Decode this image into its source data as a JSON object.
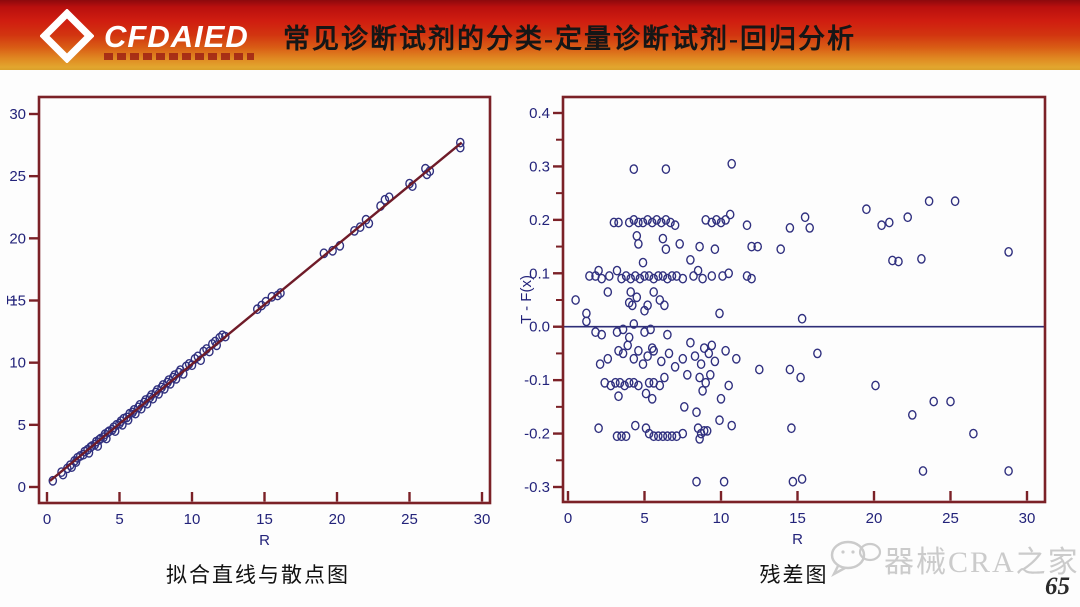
{
  "header": {
    "logo_text": "CFDAIED",
    "title": "常见诊断试剂的分类-定量诊断试剂-回归分析"
  },
  "captions": {
    "left": "拟合直线与散点图",
    "right": "残差图"
  },
  "footer": {
    "watermark_text": "器械CRA之家",
    "page_number": "65"
  },
  "colors": {
    "frame": "#7b2127",
    "tick_label": "#23237a",
    "marker": "#30307f",
    "fit_line": "#6f1b28",
    "zero_line": "#2e2e78",
    "header_red": "#d01d10",
    "header_gold": "#dfa32b",
    "watermark": "#cbcbcb"
  },
  "chart_data": [
    {
      "type": "scatter",
      "title": "拟合直线与散点图",
      "xlabel": "R",
      "ylabel": "T",
      "xlim": [
        0,
        30
      ],
      "ylim": [
        0,
        30
      ],
      "xticks": [
        0,
        5,
        10,
        15,
        20,
        25,
        30
      ],
      "xtick_labels": [
        "0",
        "5",
        "10",
        "15",
        "20",
        "25",
        "30"
      ],
      "yticks": [
        0,
        5,
        10,
        15,
        20,
        25,
        30
      ],
      "ytick_labels": [
        "0",
        "5",
        "10",
        "15",
        "20",
        "25",
        "30"
      ],
      "grid": false,
      "line": {
        "x": [
          0.2,
          28.6
        ],
        "y": [
          0.49,
          27.7
        ]
      },
      "points": [
        [
          0.4,
          0.5
        ],
        [
          1.0,
          1.2
        ],
        [
          1.1,
          1.0
        ],
        [
          1.4,
          1.5
        ],
        [
          1.6,
          1.75
        ],
        [
          1.7,
          1.6
        ],
        [
          1.9,
          2.1
        ],
        [
          2.0,
          2.0
        ],
        [
          2.1,
          2.35
        ],
        [
          2.3,
          2.5
        ],
        [
          2.5,
          2.6
        ],
        [
          2.6,
          2.85
        ],
        [
          2.8,
          3.0
        ],
        [
          2.9,
          2.75
        ],
        [
          3.0,
          3.2
        ],
        [
          3.1,
          3.3
        ],
        [
          3.3,
          3.4
        ],
        [
          3.4,
          3.65
        ],
        [
          3.5,
          3.3
        ],
        [
          3.6,
          3.8
        ],
        [
          3.7,
          3.9
        ],
        [
          3.9,
          4.0
        ],
        [
          4.0,
          4.25
        ],
        [
          4.1,
          3.9
        ],
        [
          4.2,
          4.4
        ],
        [
          4.3,
          4.5
        ],
        [
          4.5,
          4.6
        ],
        [
          4.6,
          4.8
        ],
        [
          4.7,
          4.5
        ],
        [
          4.8,
          5.0
        ],
        [
          5.0,
          5.1
        ],
        [
          5.1,
          5.3
        ],
        [
          5.2,
          5.0
        ],
        [
          5.3,
          5.5
        ],
        [
          5.5,
          5.6
        ],
        [
          5.6,
          5.4
        ],
        [
          5.7,
          5.9
        ],
        [
          5.9,
          6.0
        ],
        [
          6.0,
          6.2
        ],
        [
          6.1,
          5.9
        ],
        [
          6.3,
          6.4
        ],
        [
          6.4,
          6.6
        ],
        [
          6.5,
          6.3
        ],
        [
          6.7,
          6.8
        ],
        [
          6.8,
          7.0
        ],
        [
          6.9,
          6.7
        ],
        [
          7.1,
          7.2
        ],
        [
          7.2,
          7.4
        ],
        [
          7.3,
          7.1
        ],
        [
          7.5,
          7.6
        ],
        [
          7.6,
          7.8
        ],
        [
          7.7,
          7.5
        ],
        [
          7.9,
          8.0
        ],
        [
          8.0,
          8.2
        ],
        [
          8.1,
          7.9
        ],
        [
          8.3,
          8.4
        ],
        [
          8.4,
          8.6
        ],
        [
          8.5,
          8.3
        ],
        [
          8.7,
          8.8
        ],
        [
          8.8,
          9.0
        ],
        [
          8.9,
          8.7
        ],
        [
          9.1,
          9.2
        ],
        [
          9.2,
          9.4
        ],
        [
          9.4,
          9.1
        ],
        [
          9.6,
          9.7
        ],
        [
          9.8,
          9.9
        ],
        [
          10.0,
          9.8
        ],
        [
          10.2,
          10.3
        ],
        [
          10.4,
          10.5
        ],
        [
          10.6,
          10.2
        ],
        [
          10.8,
          10.9
        ],
        [
          11.0,
          11.1
        ],
        [
          11.2,
          10.9
        ],
        [
          11.4,
          11.5
        ],
        [
          11.6,
          11.7
        ],
        [
          11.7,
          11.4
        ],
        [
          11.9,
          12.0
        ],
        [
          12.1,
          12.2
        ],
        [
          12.3,
          12.1
        ],
        [
          14.5,
          14.3
        ],
        [
          14.8,
          14.6
        ],
        [
          15.1,
          14.9
        ],
        [
          15.5,
          15.3
        ],
        [
          15.9,
          15.4
        ],
        [
          16.1,
          15.6
        ],
        [
          19.1,
          18.8
        ],
        [
          19.7,
          19.0
        ],
        [
          20.2,
          19.4
        ],
        [
          21.2,
          20.6
        ],
        [
          21.6,
          20.9
        ],
        [
          22.0,
          21.5
        ],
        [
          22.2,
          21.2
        ],
        [
          23.0,
          22.6
        ],
        [
          23.3,
          23.1
        ],
        [
          23.6,
          23.3
        ],
        [
          25.0,
          24.4
        ],
        [
          25.2,
          24.2
        ],
        [
          26.1,
          25.6
        ],
        [
          26.2,
          25.15
        ],
        [
          26.4,
          25.4
        ],
        [
          28.5,
          27.7
        ],
        [
          28.5,
          27.3
        ]
      ]
    },
    {
      "type": "scatter",
      "title": "残差图",
      "xlabel": "R",
      "ylabel": "T - F(x)",
      "xlim": [
        0,
        30
      ],
      "ylim": [
        -0.3,
        0.4
      ],
      "xticks": [
        0,
        5,
        10,
        15,
        20,
        25,
        30
      ],
      "xtick_labels": [
        "0",
        "5",
        "10",
        "15",
        "20",
        "25",
        "30"
      ],
      "yticks": [
        0.4,
        0.3,
        0.2,
        0.1,
        0.0,
        -0.1,
        -0.2,
        -0.3
      ],
      "ytick_labels": [
        "0.4",
        "0.3",
        "0.2",
        "0.1",
        "0.0",
        "-0.1",
        "-0.2",
        "-0.3"
      ],
      "yticks_minor": [
        0.35,
        0.25,
        0.15,
        0.05,
        -0.05,
        -0.15,
        -0.25
      ],
      "grid": false,
      "zero_line": 0,
      "points": [
        [
          4.3,
          0.295
        ],
        [
          6.4,
          0.295
        ],
        [
          10.7,
          0.305
        ],
        [
          3.0,
          0.195
        ],
        [
          3.3,
          0.195
        ],
        [
          4.0,
          0.195
        ],
        [
          4.3,
          0.2
        ],
        [
          4.6,
          0.195
        ],
        [
          4.9,
          0.195
        ],
        [
          5.2,
          0.2
        ],
        [
          5.5,
          0.195
        ],
        [
          5.8,
          0.2
        ],
        [
          6.1,
          0.195
        ],
        [
          6.4,
          0.2
        ],
        [
          6.7,
          0.195
        ],
        [
          7.0,
          0.19
        ],
        [
          9.0,
          0.2
        ],
        [
          9.4,
          0.195
        ],
        [
          9.7,
          0.2
        ],
        [
          10.0,
          0.195
        ],
        [
          10.3,
          0.2
        ],
        [
          10.6,
          0.21
        ],
        [
          11.7,
          0.19
        ],
        [
          14.5,
          0.185
        ],
        [
          15.5,
          0.205
        ],
        [
          15.8,
          0.185
        ],
        [
          19.5,
          0.22
        ],
        [
          20.5,
          0.19
        ],
        [
          21.0,
          0.195
        ],
        [
          22.2,
          0.205
        ],
        [
          23.6,
          0.235
        ],
        [
          25.3,
          0.235
        ],
        [
          4.5,
          0.17
        ],
        [
          4.6,
          0.155
        ],
        [
          6.2,
          0.165
        ],
        [
          6.4,
          0.145
        ],
        [
          7.3,
          0.155
        ],
        [
          8.6,
          0.15
        ],
        [
          9.6,
          0.145
        ],
        [
          12.0,
          0.15
        ],
        [
          12.4,
          0.15
        ],
        [
          13.9,
          0.145
        ],
        [
          28.8,
          0.14
        ],
        [
          4.9,
          0.12
        ],
        [
          8.0,
          0.125
        ],
        [
          21.2,
          0.124
        ],
        [
          21.6,
          0.122
        ],
        [
          23.1,
          0.127
        ],
        [
          1.4,
          0.095
        ],
        [
          1.8,
          0.095
        ],
        [
          2.2,
          0.09
        ],
        [
          2.7,
          0.095
        ],
        [
          3.5,
          0.09
        ],
        [
          3.8,
          0.095
        ],
        [
          4.1,
          0.09
        ],
        [
          4.4,
          0.095
        ],
        [
          4.7,
          0.09
        ],
        [
          5.0,
          0.095
        ],
        [
          5.3,
          0.095
        ],
        [
          5.6,
          0.09
        ],
        [
          5.9,
          0.095
        ],
        [
          6.2,
          0.095
        ],
        [
          6.5,
          0.09
        ],
        [
          6.8,
          0.095
        ],
        [
          7.1,
          0.095
        ],
        [
          7.5,
          0.09
        ],
        [
          8.2,
          0.095
        ],
        [
          8.8,
          0.09
        ],
        [
          9.4,
          0.095
        ],
        [
          10.1,
          0.095
        ],
        [
          11.7,
          0.095
        ],
        [
          12.0,
          0.09
        ],
        [
          2.0,
          0.105
        ],
        [
          3.2,
          0.105
        ],
        [
          8.5,
          0.105
        ],
        [
          10.5,
          0.1
        ],
        [
          0.5,
          0.05
        ],
        [
          2.6,
          0.065
        ],
        [
          4.0,
          0.045
        ],
        [
          4.2,
          0.04
        ],
        [
          4.5,
          0.055
        ],
        [
          5.2,
          0.04
        ],
        [
          5.6,
          0.065
        ],
        [
          6.0,
          0.05
        ],
        [
          6.3,
          0.04
        ],
        [
          9.9,
          0.025
        ],
        [
          15.3,
          0.015
        ],
        [
          1.2,
          0.025
        ],
        [
          1.2,
          0.01
        ],
        [
          4.1,
          0.065
        ],
        [
          5.0,
          0.03
        ],
        [
          1.8,
          -0.01
        ],
        [
          2.2,
          -0.015
        ],
        [
          3.2,
          -0.01
        ],
        [
          3.6,
          -0.005
        ],
        [
          4.0,
          -0.02
        ],
        [
          4.3,
          0.005
        ],
        [
          5.0,
          -0.01
        ],
        [
          5.4,
          -0.005
        ],
        [
          6.5,
          -0.015
        ],
        [
          8.0,
          -0.03
        ],
        [
          5.5,
          -0.04
        ],
        [
          2.1,
          -0.07
        ],
        [
          2.6,
          -0.06
        ],
        [
          3.3,
          -0.045
        ],
        [
          3.6,
          -0.05
        ],
        [
          3.9,
          -0.035
        ],
        [
          4.3,
          -0.06
        ],
        [
          4.6,
          -0.045
        ],
        [
          4.9,
          -0.07
        ],
        [
          5.2,
          -0.055
        ],
        [
          5.6,
          -0.045
        ],
        [
          6.1,
          -0.065
        ],
        [
          6.6,
          -0.05
        ],
        [
          7.0,
          -0.075
        ],
        [
          7.5,
          -0.06
        ],
        [
          8.3,
          -0.055
        ],
        [
          8.7,
          -0.07
        ],
        [
          9.2,
          -0.05
        ],
        [
          9.6,
          -0.065
        ],
        [
          10.3,
          -0.045
        ],
        [
          11.0,
          -0.06
        ],
        [
          12.5,
          -0.08
        ],
        [
          14.5,
          -0.08
        ],
        [
          16.3,
          -0.05
        ],
        [
          8.9,
          -0.04
        ],
        [
          9.4,
          -0.035
        ],
        [
          2.4,
          -0.105
        ],
        [
          2.8,
          -0.11
        ],
        [
          3.1,
          -0.105
        ],
        [
          3.4,
          -0.105
        ],
        [
          3.7,
          -0.11
        ],
        [
          4.0,
          -0.105
        ],
        [
          4.3,
          -0.105
        ],
        [
          4.6,
          -0.11
        ],
        [
          5.3,
          -0.105
        ],
        [
          5.6,
          -0.105
        ],
        [
          6.0,
          -0.11
        ],
        [
          6.3,
          -0.095
        ],
        [
          7.8,
          -0.09
        ],
        [
          8.6,
          -0.095
        ],
        [
          9.0,
          -0.105
        ],
        [
          9.3,
          -0.09
        ],
        [
          8.8,
          -0.12
        ],
        [
          10.5,
          -0.11
        ],
        [
          20.1,
          -0.11
        ],
        [
          15.2,
          -0.095
        ],
        [
          3.3,
          -0.13
        ],
        [
          5.1,
          -0.125
        ],
        [
          5.5,
          -0.135
        ],
        [
          7.6,
          -0.15
        ],
        [
          8.4,
          -0.16
        ],
        [
          10.0,
          -0.135
        ],
        [
          23.9,
          -0.14
        ],
        [
          25.0,
          -0.14
        ],
        [
          22.5,
          -0.165
        ],
        [
          9.9,
          -0.175
        ],
        [
          2.0,
          -0.19
        ],
        [
          3.2,
          -0.205
        ],
        [
          3.5,
          -0.205
        ],
        [
          3.8,
          -0.205
        ],
        [
          4.4,
          -0.185
        ],
        [
          5.1,
          -0.19
        ],
        [
          5.3,
          -0.2
        ],
        [
          5.6,
          -0.205
        ],
        [
          5.9,
          -0.205
        ],
        [
          6.2,
          -0.205
        ],
        [
          6.5,
          -0.205
        ],
        [
          6.8,
          -0.205
        ],
        [
          7.1,
          -0.205
        ],
        [
          7.5,
          -0.2
        ],
        [
          8.5,
          -0.19
        ],
        [
          8.7,
          -0.2
        ],
        [
          8.9,
          -0.195
        ],
        [
          9.1,
          -0.195
        ],
        [
          10.7,
          -0.185
        ],
        [
          14.6,
          -0.19
        ],
        [
          26.5,
          -0.2
        ],
        [
          8.6,
          -0.21
        ],
        [
          8.4,
          -0.29
        ],
        [
          10.2,
          -0.29
        ],
        [
          14.7,
          -0.29
        ],
        [
          15.3,
          -0.285
        ],
        [
          23.2,
          -0.27
        ],
        [
          28.8,
          -0.27
        ]
      ]
    }
  ]
}
